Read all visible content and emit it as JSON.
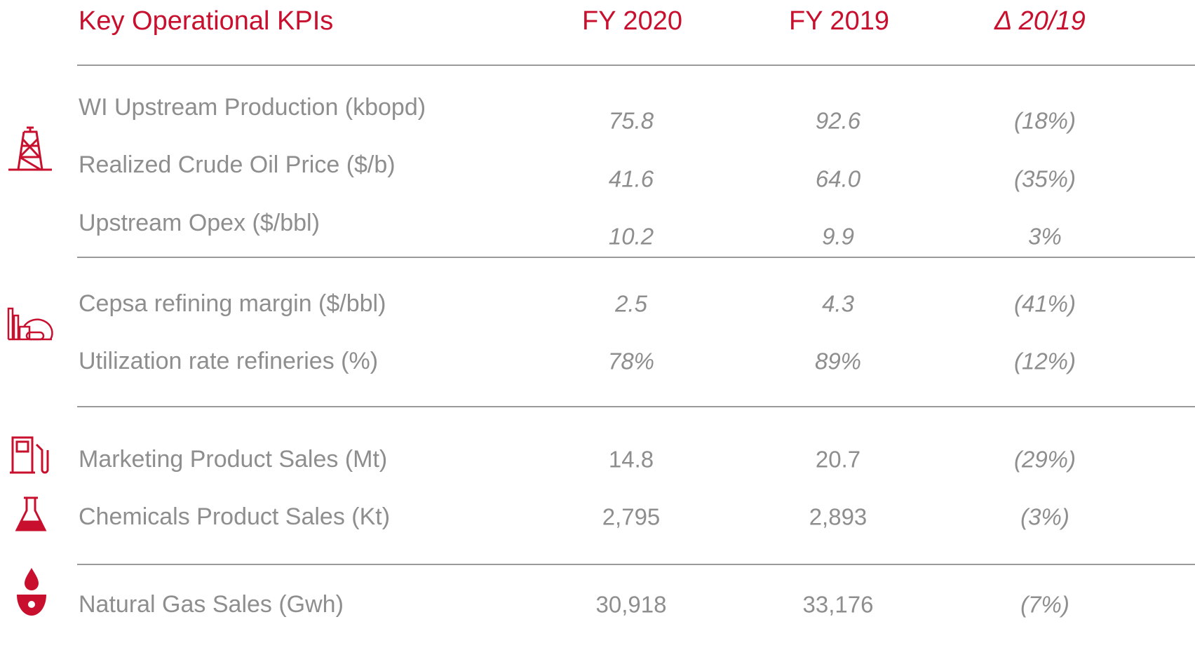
{
  "header": {
    "title": "Key Operational KPIs",
    "columns": [
      "FY 2020",
      "FY 2019",
      "Δ 20/19"
    ]
  },
  "table": {
    "rows": [
      [
        "WI Upstream Production (kbopd)",
        "75.8",
        "92.6",
        "(18%)"
      ],
      [
        "Realized Crude Oil Price ($/b)",
        "41.6",
        "64.0",
        "(35%)"
      ],
      [
        "Upstream Opex ($/bbl)",
        "10.2",
        "9.9",
        "3%"
      ],
      [
        "Cepsa refining margin ($/bbl)",
        "2.5",
        "4.3",
        "(41%)"
      ],
      [
        "Utilization rate refineries (%)",
        "78%",
        "89%",
        "(12%)"
      ],
      [
        "Marketing Product Sales (Mt)",
        "14.8",
        "20.7",
        "(29%)"
      ],
      [
        "Chemicals Product Sales (Kt)",
        "2,795",
        "2,893",
        "(3%)"
      ],
      [
        "Natural Gas Sales (Gwh)",
        "30,918",
        "33,176",
        "(7%)"
      ]
    ]
  }
}
